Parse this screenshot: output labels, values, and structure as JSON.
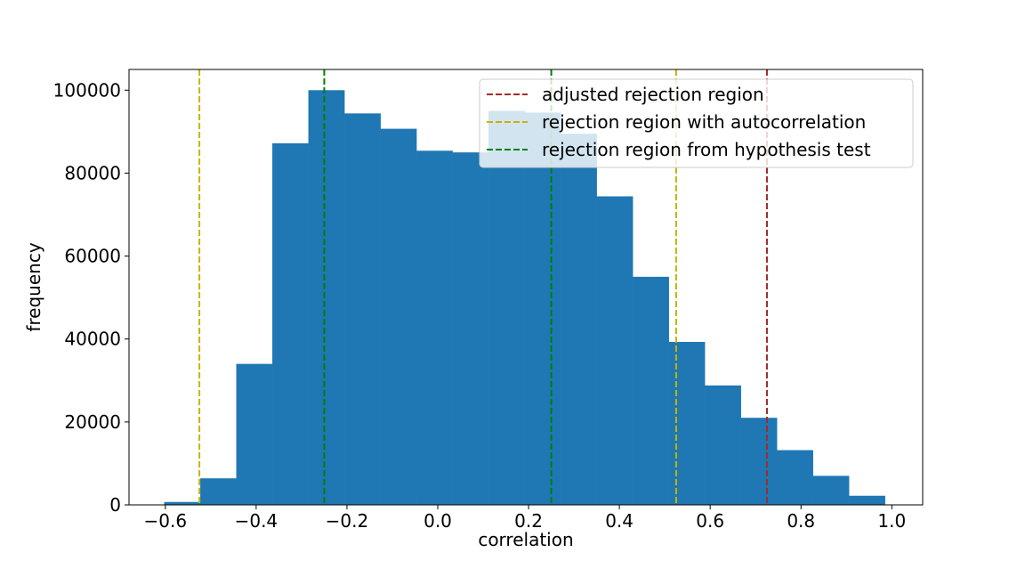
{
  "chart_data": {
    "type": "bar",
    "xlabel": "correlation",
    "ylabel": "frequency",
    "xlim": [
      -0.68,
      1.068
    ],
    "ylim": [
      0,
      105000
    ],
    "x_ticks": [
      -0.6,
      -0.4,
      -0.2,
      0.0,
      0.2,
      0.4,
      0.6,
      0.8,
      1.0
    ],
    "x_tick_labels": [
      "−0.6",
      "−0.4",
      "−0.2",
      "0.0",
      "0.2",
      "0.4",
      "0.6",
      "0.8",
      "1.0"
    ],
    "y_ticks": [
      0,
      20000,
      40000,
      60000,
      80000,
      100000
    ],
    "y_tick_labels": [
      "0",
      "20000",
      "40000",
      "60000",
      "80000",
      "100000"
    ],
    "bar_color": "#1f77b4",
    "bins": [
      {
        "x0": -0.6025,
        "x1": -0.5231,
        "count": 700
      },
      {
        "x0": -0.5231,
        "x1": -0.4438,
        "count": 6400
      },
      {
        "x0": -0.4438,
        "x1": -0.3644,
        "count": 34000
      },
      {
        "x0": -0.3644,
        "x1": -0.285,
        "count": 87200
      },
      {
        "x0": -0.285,
        "x1": -0.2056,
        "count": 100000
      },
      {
        "x0": -0.2056,
        "x1": -0.1262,
        "count": 94400
      },
      {
        "x0": -0.1262,
        "x1": -0.0469,
        "count": 90700
      },
      {
        "x0": -0.0469,
        "x1": 0.0325,
        "count": 85400
      },
      {
        "x0": 0.0325,
        "x1": 0.1119,
        "count": 85000
      },
      {
        "x0": 0.1119,
        "x1": 0.1913,
        "count": 95000
      },
      {
        "x0": 0.1913,
        "x1": 0.2706,
        "count": 94600
      },
      {
        "x0": 0.2706,
        "x1": 0.35,
        "count": 89500
      },
      {
        "x0": 0.35,
        "x1": 0.4294,
        "count": 74400
      },
      {
        "x0": 0.4294,
        "x1": 0.5088,
        "count": 55000
      },
      {
        "x0": 0.5088,
        "x1": 0.5881,
        "count": 39300
      },
      {
        "x0": 0.5881,
        "x1": 0.6675,
        "count": 28800
      },
      {
        "x0": 0.6675,
        "x1": 0.7469,
        "count": 21000
      },
      {
        "x0": 0.7469,
        "x1": 0.8263,
        "count": 13200
      },
      {
        "x0": 0.8263,
        "x1": 0.9056,
        "count": 7000
      },
      {
        "x0": 0.9056,
        "x1": 0.985,
        "count": 2200
      }
    ],
    "vlines": [
      {
        "x": -0.525,
        "color": "#c8b400",
        "series": "rejection region with autocorrelation"
      },
      {
        "x": 0.525,
        "color": "#c8b400",
        "series": "rejection region with autocorrelation"
      },
      {
        "x": -0.25,
        "color": "#008000",
        "series": "rejection region from hypothesis test"
      },
      {
        "x": 0.25,
        "color": "#008000",
        "series": "rejection region from hypothesis test"
      },
      {
        "x": 0.725,
        "color": "#a52a2a",
        "series": "adjusted rejection region"
      }
    ],
    "legend": {
      "placement": "top-right",
      "entries": [
        {
          "label": "adjusted rejection region",
          "color": "#a52a2a"
        },
        {
          "label": "rejection region with autocorrelation",
          "color": "#c8b400"
        },
        {
          "label": "rejection region from hypothesis test",
          "color": "#008000"
        }
      ]
    }
  }
}
